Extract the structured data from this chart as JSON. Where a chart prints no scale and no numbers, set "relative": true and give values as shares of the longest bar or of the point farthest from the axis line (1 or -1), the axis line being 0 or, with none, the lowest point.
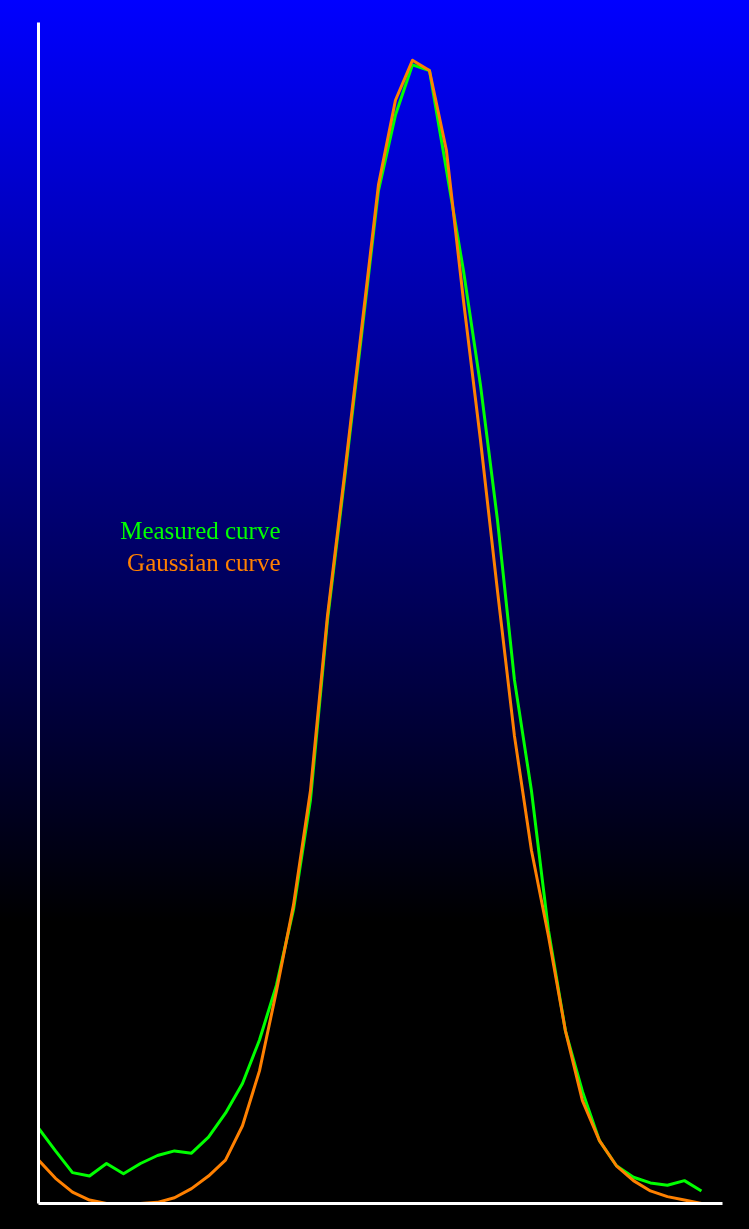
{
  "chart_data": {
    "type": "line",
    "relative": true,
    "legend": false,
    "marker": "none",
    "line_style": "solid",
    "categories": [
      null,
      null,
      null,
      null,
      null,
      null,
      null,
      null,
      null,
      null,
      null,
      null,
      null,
      null,
      null,
      null,
      null,
      null,
      null,
      null,
      null,
      null,
      null,
      null,
      null,
      null,
      null,
      null,
      null,
      null,
      null,
      null,
      null,
      null,
      null,
      null,
      null,
      null,
      null,
      null,
      null
    ],
    "series": [
      {
        "name": "Measured curve",
        "color": "#00ff00",
        "values": [
          0.066,
          0.046,
          0.027,
          0.024,
          0.035,
          0.026,
          0.035,
          0.042,
          0.046,
          0.044,
          0.058,
          0.079,
          0.105,
          0.143,
          0.191,
          0.257,
          0.353,
          0.51,
          0.633,
          0.759,
          0.886,
          0.952,
          0.996,
          0.991,
          0.904,
          0.816,
          0.716,
          0.598,
          0.458,
          0.361,
          0.239,
          0.151,
          0.098,
          0.055,
          0.033,
          0.023,
          0.018,
          0.016,
          0.02,
          0.011,
          null
        ]
      },
      {
        "name": "Gaussian curve",
        "color": "#ff8000",
        "values": [
          0.038,
          0.022,
          0.01,
          0.003,
          0,
          0,
          0,
          0.001,
          0.005,
          0.013,
          0.024,
          0.038,
          0.068,
          0.116,
          0.186,
          0.261,
          0.361,
          0.514,
          0.637,
          0.764,
          0.891,
          0.965,
          1,
          0.991,
          0.921,
          0.79,
          0.668,
          0.536,
          0.409,
          0.309,
          0.234,
          0.151,
          0.09,
          0.055,
          0.033,
          0.02,
          0.011,
          0.006,
          0.003,
          0,
          null
        ]
      }
    ]
  }
}
